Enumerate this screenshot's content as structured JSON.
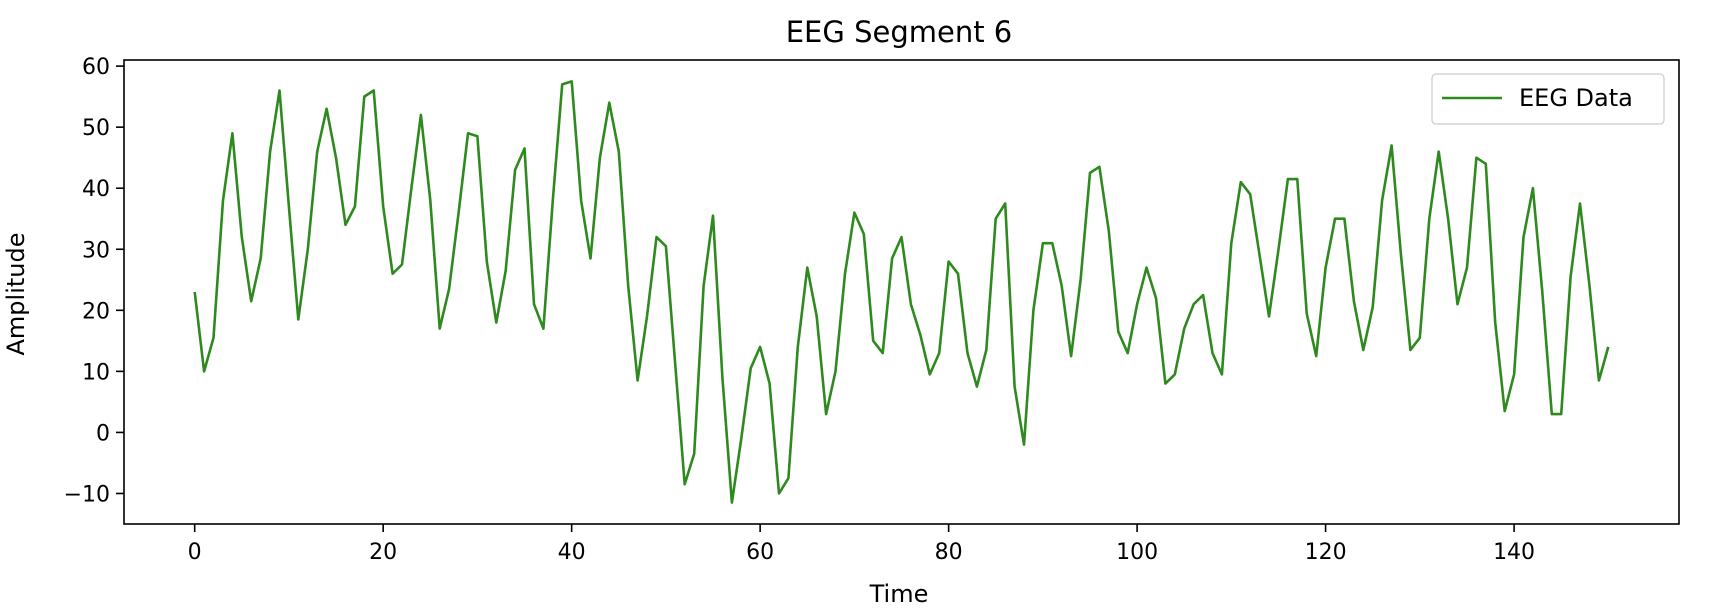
{
  "chart_data": {
    "type": "line",
    "title": "EEG Segment 6",
    "xlabel": "Time",
    "ylabel": "Amplitude",
    "xlim": [
      -7.5,
      157.5
    ],
    "ylim": [
      -15,
      61
    ],
    "xticks": [
      0,
      20,
      40,
      60,
      80,
      100,
      120,
      140
    ],
    "yticks": [
      -10,
      0,
      10,
      20,
      30,
      40,
      50,
      60
    ],
    "grid": false,
    "legend": "upper right",
    "colors": {
      "line": "#2e8a1e",
      "axis": "#000000",
      "legend_border": "#cccccc"
    },
    "series": [
      {
        "name": "EEG Data",
        "x": [
          0,
          1,
          2,
          3,
          4,
          5,
          6,
          7,
          8,
          9,
          10,
          11,
          12,
          13,
          14,
          15,
          16,
          17,
          18,
          19,
          20,
          21,
          22,
          23,
          24,
          25,
          26,
          27,
          28,
          29,
          30,
          31,
          32,
          33,
          34,
          35,
          36,
          37,
          38,
          39,
          40,
          41,
          42,
          43,
          44,
          45,
          46,
          47,
          48,
          49,
          50,
          51,
          52,
          53,
          54,
          55,
          56,
          57,
          58,
          59,
          60,
          61,
          62,
          63,
          64,
          65,
          66,
          67,
          68,
          69,
          70,
          71,
          72,
          73,
          74,
          75,
          76,
          77,
          78,
          79,
          80,
          81,
          82,
          83,
          84,
          85,
          86,
          87,
          88,
          89,
          90,
          91,
          92,
          93,
          94,
          95,
          96,
          97,
          98,
          99,
          100,
          101,
          102,
          103,
          104,
          105,
          106,
          107,
          108,
          109,
          110,
          111,
          112,
          113,
          114,
          115,
          116,
          117,
          118,
          119,
          120,
          121,
          122,
          123,
          124,
          125,
          126,
          127,
          128,
          129,
          130,
          131,
          132,
          133,
          134,
          135,
          136,
          137,
          138,
          139,
          140,
          141,
          142,
          143,
          144,
          145,
          146,
          147,
          148,
          149,
          150
        ],
        "values": [
          23,
          10,
          15.5,
          38,
          49,
          32,
          21.5,
          28.5,
          46,
          56,
          37,
          18.5,
          30,
          46,
          53,
          45,
          34,
          37,
          55,
          56,
          37,
          26,
          27.5,
          40,
          52,
          38,
          17,
          23.5,
          36,
          49,
          48.5,
          28,
          18,
          26.5,
          43,
          46.5,
          21,
          17,
          38,
          57,
          57.5,
          38,
          28.5,
          45,
          54,
          46,
          24,
          8.5,
          19,
          32,
          30.5,
          11,
          -8.5,
          -3.5,
          24,
          35.5,
          9,
          -11.5,
          -1,
          10.5,
          14,
          8,
          -10,
          -7.5,
          14,
          27,
          19,
          3,
          10,
          26,
          36,
          32.5,
          15,
          13,
          28.5,
          32,
          21,
          16,
          9.5,
          13,
          28,
          26,
          13,
          7.5,
          13.5,
          35,
          37.5,
          7.5,
          -2,
          20,
          31,
          31,
          24,
          12.5,
          25,
          42.5,
          43.5,
          33,
          16.5,
          13,
          21,
          27,
          22,
          8,
          9.5,
          17,
          21,
          22.5,
          13,
          9.5,
          31,
          41,
          39,
          29,
          19,
          30,
          41.5,
          41.5,
          19.5,
          12.5,
          27,
          35,
          35,
          21.5,
          13.5,
          20.5,
          38,
          47,
          29,
          13.5,
          15.5,
          35,
          46,
          35,
          21,
          27,
          45,
          44,
          18,
          3.5,
          9.5,
          32,
          40,
          23,
          3,
          3,
          25.5,
          37.5,
          24,
          8.5,
          14
        ]
      }
    ]
  }
}
